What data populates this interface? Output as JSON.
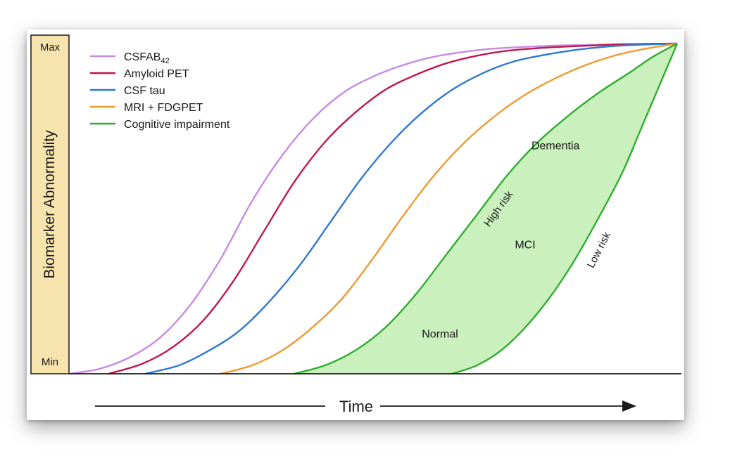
{
  "chart_data": {
    "type": "line",
    "ylabel": "Biomarker Abnormality",
    "xlabel": "Time",
    "y_tick_labels": {
      "max": "Max",
      "min": "Min"
    },
    "x_range": [
      0,
      100
    ],
    "y_range": [
      0,
      100
    ],
    "grid": false,
    "legend_position": "top-left",
    "series": [
      {
        "name": "CSFAB",
        "subscript": "42",
        "color": "#c88ae0",
        "points": [
          [
            0,
            0
          ],
          [
            5,
            1.5
          ],
          [
            10,
            5
          ],
          [
            15,
            11
          ],
          [
            20,
            21
          ],
          [
            25,
            35
          ],
          [
            30,
            52
          ],
          [
            35,
            66
          ],
          [
            40,
            77
          ],
          [
            45,
            85
          ],
          [
            50,
            90
          ],
          [
            55,
            93.5
          ],
          [
            60,
            96
          ],
          [
            65,
            97.5
          ],
          [
            70,
            98.5
          ],
          [
            75,
            99
          ],
          [
            80,
            99.4
          ],
          [
            85,
            99.6
          ],
          [
            90,
            99.8
          ],
          [
            95,
            99.9
          ],
          [
            100,
            100
          ]
        ]
      },
      {
        "name": "Amyloid PET",
        "color": "#c0174f",
        "points": [
          [
            6.5,
            0
          ],
          [
            12,
            3
          ],
          [
            17,
            8
          ],
          [
            22,
            16
          ],
          [
            27,
            28
          ],
          [
            32,
            43
          ],
          [
            37,
            58
          ],
          [
            42,
            70
          ],
          [
            47,
            79
          ],
          [
            52,
            86
          ],
          [
            57,
            90.5
          ],
          [
            62,
            94
          ],
          [
            67,
            96.3
          ],
          [
            72,
            97.8
          ],
          [
            77,
            98.6
          ],
          [
            82,
            99.1
          ],
          [
            87,
            99.5
          ],
          [
            92,
            99.8
          ],
          [
            100,
            100
          ]
        ]
      },
      {
        "name": "CSF tau",
        "color": "#2e78d2",
        "points": [
          [
            12.5,
            0
          ],
          [
            18,
            2.5
          ],
          [
            23,
            7
          ],
          [
            28,
            13
          ],
          [
            33,
            22
          ],
          [
            38,
            33
          ],
          [
            43,
            46
          ],
          [
            48,
            59
          ],
          [
            53,
            70
          ],
          [
            58,
            79
          ],
          [
            63,
            86
          ],
          [
            68,
            91
          ],
          [
            73,
            94.5
          ],
          [
            78,
            96.5
          ],
          [
            83,
            98
          ],
          [
            88,
            99
          ],
          [
            93,
            99.6
          ],
          [
            100,
            100
          ]
        ]
      },
      {
        "name": "MRI + FDGPET",
        "color": "#f09a30",
        "points": [
          [
            25,
            0
          ],
          [
            30,
            2.5
          ],
          [
            35,
            7
          ],
          [
            40,
            14
          ],
          [
            45,
            23
          ],
          [
            50,
            35
          ],
          [
            55,
            48
          ],
          [
            60,
            60
          ],
          [
            65,
            70
          ],
          [
            70,
            78
          ],
          [
            75,
            84.5
          ],
          [
            80,
            89.5
          ],
          [
            85,
            93.5
          ],
          [
            90,
            96.5
          ],
          [
            95,
            98.5
          ],
          [
            100,
            100
          ]
        ]
      },
      {
        "name": "Cognitive impairment",
        "color": "#2fae2f",
        "upper_curve_label": "High risk",
        "lower_curve_label": "Low risk",
        "upper_points": [
          [
            37,
            0
          ],
          [
            42,
            2.5
          ],
          [
            47,
            7
          ],
          [
            52,
            14
          ],
          [
            57,
            24
          ],
          [
            62,
            36
          ],
          [
            67,
            48
          ],
          [
            72,
            60
          ],
          [
            77,
            70
          ],
          [
            82,
            78
          ],
          [
            87,
            85
          ],
          [
            92,
            91
          ],
          [
            96,
            96
          ],
          [
            100,
            100
          ]
        ],
        "lower_points": [
          [
            63,
            0
          ],
          [
            67,
            2.5
          ],
          [
            71,
            7
          ],
          [
            75,
            14
          ],
          [
            79,
            23
          ],
          [
            83,
            34
          ],
          [
            87,
            47
          ],
          [
            91,
            61
          ],
          [
            94,
            74
          ],
          [
            97,
            87
          ],
          [
            100,
            100
          ]
        ]
      }
    ],
    "annotations": [
      {
        "text": "Dementia",
        "x": 80,
        "y": 68
      },
      {
        "text": "MCI",
        "x": 75,
        "y": 38
      },
      {
        "text": "Normal",
        "x": 61,
        "y": 11
      }
    ]
  }
}
